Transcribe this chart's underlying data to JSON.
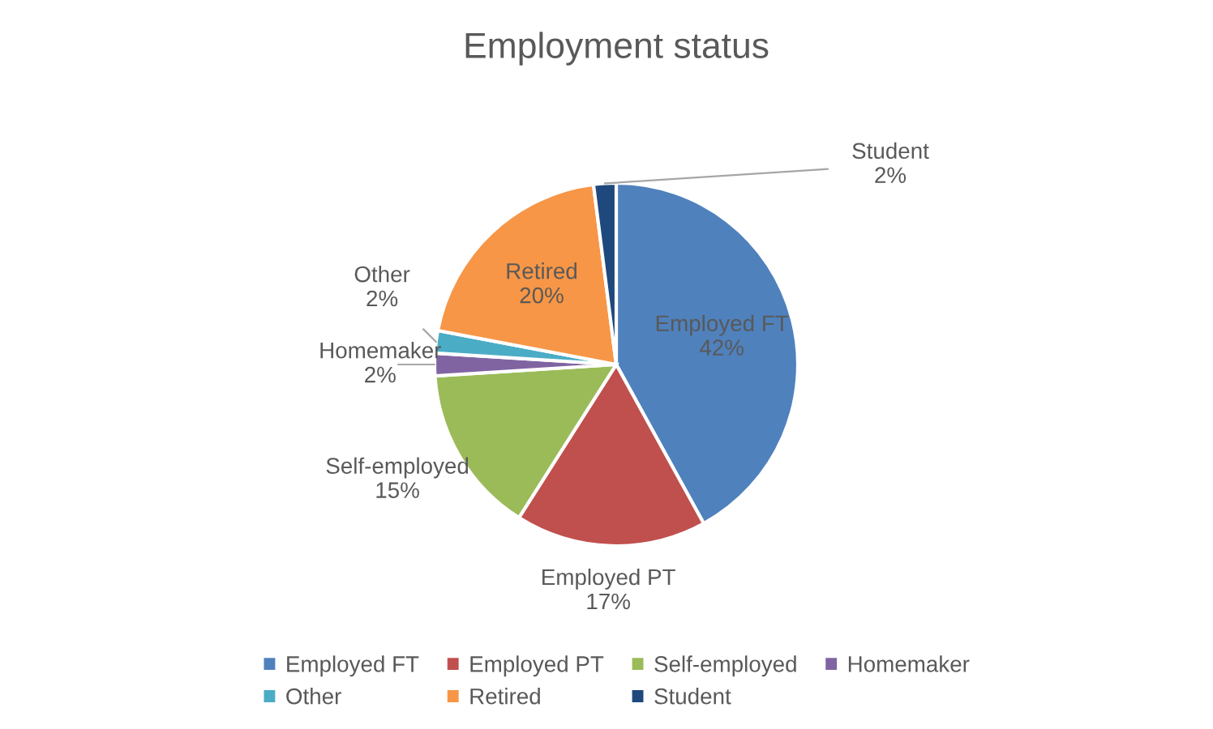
{
  "chart_data": {
    "type": "pie",
    "title": "Employment status",
    "categories": [
      "Employed FT",
      "Employed PT",
      "Self-employed",
      "Homemaker",
      "Other",
      "Retired",
      "Student"
    ],
    "values": [
      42,
      17,
      15,
      2,
      2,
      20,
      2
    ],
    "value_labels": [
      "42%",
      "17%",
      "15%",
      "2%",
      "2%",
      "20%",
      "2%"
    ],
    "colors": [
      "#4f81bd",
      "#c0504d",
      "#9bbb59",
      "#8064a2",
      "#4bacc6",
      "#f79646",
      "#1f497d"
    ],
    "legend": "bottom"
  }
}
